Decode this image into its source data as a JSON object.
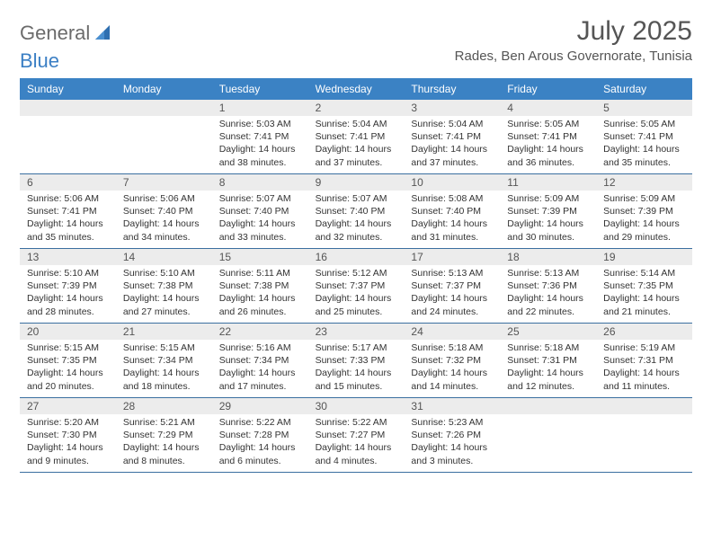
{
  "logo": {
    "word1": "General",
    "word2": "Blue"
  },
  "title": "July 2025",
  "subtitle": "Rades, Ben Arous Governorate, Tunisia",
  "colors": {
    "header_bg": "#3b82c4",
    "header_text": "#ffffff",
    "daynum_bg": "#ececec",
    "week_border": "#3b6fa0",
    "logo_gray": "#6b6b6b",
    "logo_blue": "#3b7fc4"
  },
  "day_names": [
    "Sunday",
    "Monday",
    "Tuesday",
    "Wednesday",
    "Thursday",
    "Friday",
    "Saturday"
  ],
  "weeks": [
    [
      {
        "n": "",
        "sr": "",
        "ss": "",
        "dl": ""
      },
      {
        "n": "",
        "sr": "",
        "ss": "",
        "dl": ""
      },
      {
        "n": "1",
        "sr": "Sunrise: 5:03 AM",
        "ss": "Sunset: 7:41 PM",
        "dl": "Daylight: 14 hours and 38 minutes."
      },
      {
        "n": "2",
        "sr": "Sunrise: 5:04 AM",
        "ss": "Sunset: 7:41 PM",
        "dl": "Daylight: 14 hours and 37 minutes."
      },
      {
        "n": "3",
        "sr": "Sunrise: 5:04 AM",
        "ss": "Sunset: 7:41 PM",
        "dl": "Daylight: 14 hours and 37 minutes."
      },
      {
        "n": "4",
        "sr": "Sunrise: 5:05 AM",
        "ss": "Sunset: 7:41 PM",
        "dl": "Daylight: 14 hours and 36 minutes."
      },
      {
        "n": "5",
        "sr": "Sunrise: 5:05 AM",
        "ss": "Sunset: 7:41 PM",
        "dl": "Daylight: 14 hours and 35 minutes."
      }
    ],
    [
      {
        "n": "6",
        "sr": "Sunrise: 5:06 AM",
        "ss": "Sunset: 7:41 PM",
        "dl": "Daylight: 14 hours and 35 minutes."
      },
      {
        "n": "7",
        "sr": "Sunrise: 5:06 AM",
        "ss": "Sunset: 7:40 PM",
        "dl": "Daylight: 14 hours and 34 minutes."
      },
      {
        "n": "8",
        "sr": "Sunrise: 5:07 AM",
        "ss": "Sunset: 7:40 PM",
        "dl": "Daylight: 14 hours and 33 minutes."
      },
      {
        "n": "9",
        "sr": "Sunrise: 5:07 AM",
        "ss": "Sunset: 7:40 PM",
        "dl": "Daylight: 14 hours and 32 minutes."
      },
      {
        "n": "10",
        "sr": "Sunrise: 5:08 AM",
        "ss": "Sunset: 7:40 PM",
        "dl": "Daylight: 14 hours and 31 minutes."
      },
      {
        "n": "11",
        "sr": "Sunrise: 5:09 AM",
        "ss": "Sunset: 7:39 PM",
        "dl": "Daylight: 14 hours and 30 minutes."
      },
      {
        "n": "12",
        "sr": "Sunrise: 5:09 AM",
        "ss": "Sunset: 7:39 PM",
        "dl": "Daylight: 14 hours and 29 minutes."
      }
    ],
    [
      {
        "n": "13",
        "sr": "Sunrise: 5:10 AM",
        "ss": "Sunset: 7:39 PM",
        "dl": "Daylight: 14 hours and 28 minutes."
      },
      {
        "n": "14",
        "sr": "Sunrise: 5:10 AM",
        "ss": "Sunset: 7:38 PM",
        "dl": "Daylight: 14 hours and 27 minutes."
      },
      {
        "n": "15",
        "sr": "Sunrise: 5:11 AM",
        "ss": "Sunset: 7:38 PM",
        "dl": "Daylight: 14 hours and 26 minutes."
      },
      {
        "n": "16",
        "sr": "Sunrise: 5:12 AM",
        "ss": "Sunset: 7:37 PM",
        "dl": "Daylight: 14 hours and 25 minutes."
      },
      {
        "n": "17",
        "sr": "Sunrise: 5:13 AM",
        "ss": "Sunset: 7:37 PM",
        "dl": "Daylight: 14 hours and 24 minutes."
      },
      {
        "n": "18",
        "sr": "Sunrise: 5:13 AM",
        "ss": "Sunset: 7:36 PM",
        "dl": "Daylight: 14 hours and 22 minutes."
      },
      {
        "n": "19",
        "sr": "Sunrise: 5:14 AM",
        "ss": "Sunset: 7:35 PM",
        "dl": "Daylight: 14 hours and 21 minutes."
      }
    ],
    [
      {
        "n": "20",
        "sr": "Sunrise: 5:15 AM",
        "ss": "Sunset: 7:35 PM",
        "dl": "Daylight: 14 hours and 20 minutes."
      },
      {
        "n": "21",
        "sr": "Sunrise: 5:15 AM",
        "ss": "Sunset: 7:34 PM",
        "dl": "Daylight: 14 hours and 18 minutes."
      },
      {
        "n": "22",
        "sr": "Sunrise: 5:16 AM",
        "ss": "Sunset: 7:34 PM",
        "dl": "Daylight: 14 hours and 17 minutes."
      },
      {
        "n": "23",
        "sr": "Sunrise: 5:17 AM",
        "ss": "Sunset: 7:33 PM",
        "dl": "Daylight: 14 hours and 15 minutes."
      },
      {
        "n": "24",
        "sr": "Sunrise: 5:18 AM",
        "ss": "Sunset: 7:32 PM",
        "dl": "Daylight: 14 hours and 14 minutes."
      },
      {
        "n": "25",
        "sr": "Sunrise: 5:18 AM",
        "ss": "Sunset: 7:31 PM",
        "dl": "Daylight: 14 hours and 12 minutes."
      },
      {
        "n": "26",
        "sr": "Sunrise: 5:19 AM",
        "ss": "Sunset: 7:31 PM",
        "dl": "Daylight: 14 hours and 11 minutes."
      }
    ],
    [
      {
        "n": "27",
        "sr": "Sunrise: 5:20 AM",
        "ss": "Sunset: 7:30 PM",
        "dl": "Daylight: 14 hours and 9 minutes."
      },
      {
        "n": "28",
        "sr": "Sunrise: 5:21 AM",
        "ss": "Sunset: 7:29 PM",
        "dl": "Daylight: 14 hours and 8 minutes."
      },
      {
        "n": "29",
        "sr": "Sunrise: 5:22 AM",
        "ss": "Sunset: 7:28 PM",
        "dl": "Daylight: 14 hours and 6 minutes."
      },
      {
        "n": "30",
        "sr": "Sunrise: 5:22 AM",
        "ss": "Sunset: 7:27 PM",
        "dl": "Daylight: 14 hours and 4 minutes."
      },
      {
        "n": "31",
        "sr": "Sunrise: 5:23 AM",
        "ss": "Sunset: 7:26 PM",
        "dl": "Daylight: 14 hours and 3 minutes."
      },
      {
        "n": "",
        "sr": "",
        "ss": "",
        "dl": ""
      },
      {
        "n": "",
        "sr": "",
        "ss": "",
        "dl": ""
      }
    ]
  ]
}
